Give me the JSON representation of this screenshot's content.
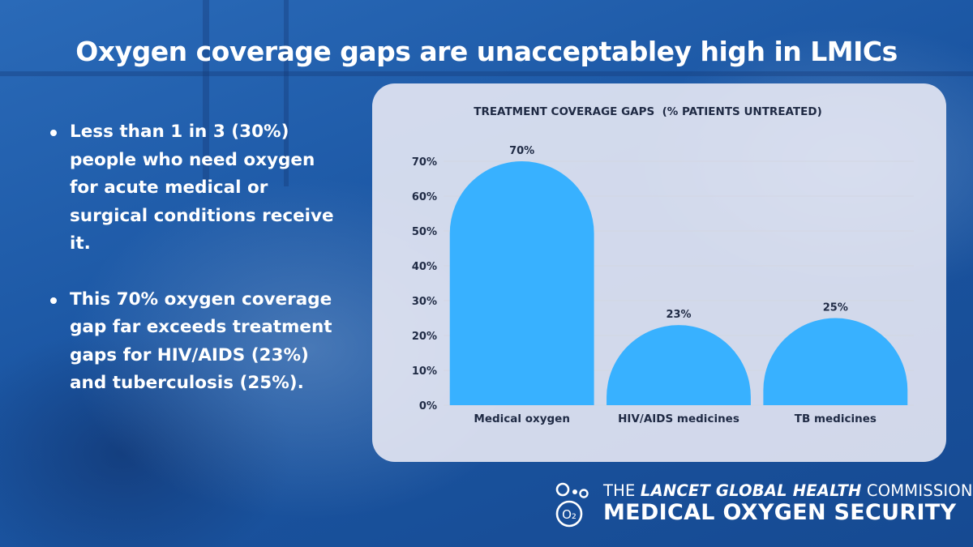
{
  "title": "Oxygen coverage gaps are unacceptabley high in LMICs",
  "bullets": [
    "Less than 1 in 3 (30%) people who need oxygen for acute medical or surgical conditions receive it.",
    "This 70% oxygen coverage gap far exceeds treatment gaps for HIV/AIDS (23%) and tuberculosis (25%)."
  ],
  "chart_data": {
    "type": "bar",
    "title": "TREATMENT COVERAGE GAPS  (% PATIENTS UNTREATED)",
    "categories": [
      "Medical oxygen",
      "HIV/AIDS medicines",
      "TB medicines"
    ],
    "values": [
      70,
      23,
      25
    ],
    "data_labels": [
      "70%",
      "23%",
      "25%"
    ],
    "y_ticks": [
      "0%",
      "10%",
      "20%",
      "30%",
      "40%",
      "50%",
      "60%",
      "70%"
    ],
    "y_tick_values": [
      0,
      10,
      20,
      30,
      40,
      50,
      60,
      70
    ],
    "ylim": [
      0,
      70
    ],
    "xlabel": "",
    "ylabel": "",
    "grid": true,
    "bar_style": "rounded-top",
    "colors": {
      "bar": "#38b1ff",
      "text": "#1f2a44",
      "grid": "#d3d6e2"
    }
  },
  "logo": {
    "line1_prefix": "THE",
    "line1_emphasis": "LANCET GLOBAL HEALTH",
    "line1_suffix": "COMMISSION",
    "line2": "MEDICAL OXYGEN SECURITY",
    "symbol": "O₂"
  },
  "colors": {
    "background": "#1d5aa8",
    "panel": "#ececf6",
    "text_light": "#ffffff"
  }
}
